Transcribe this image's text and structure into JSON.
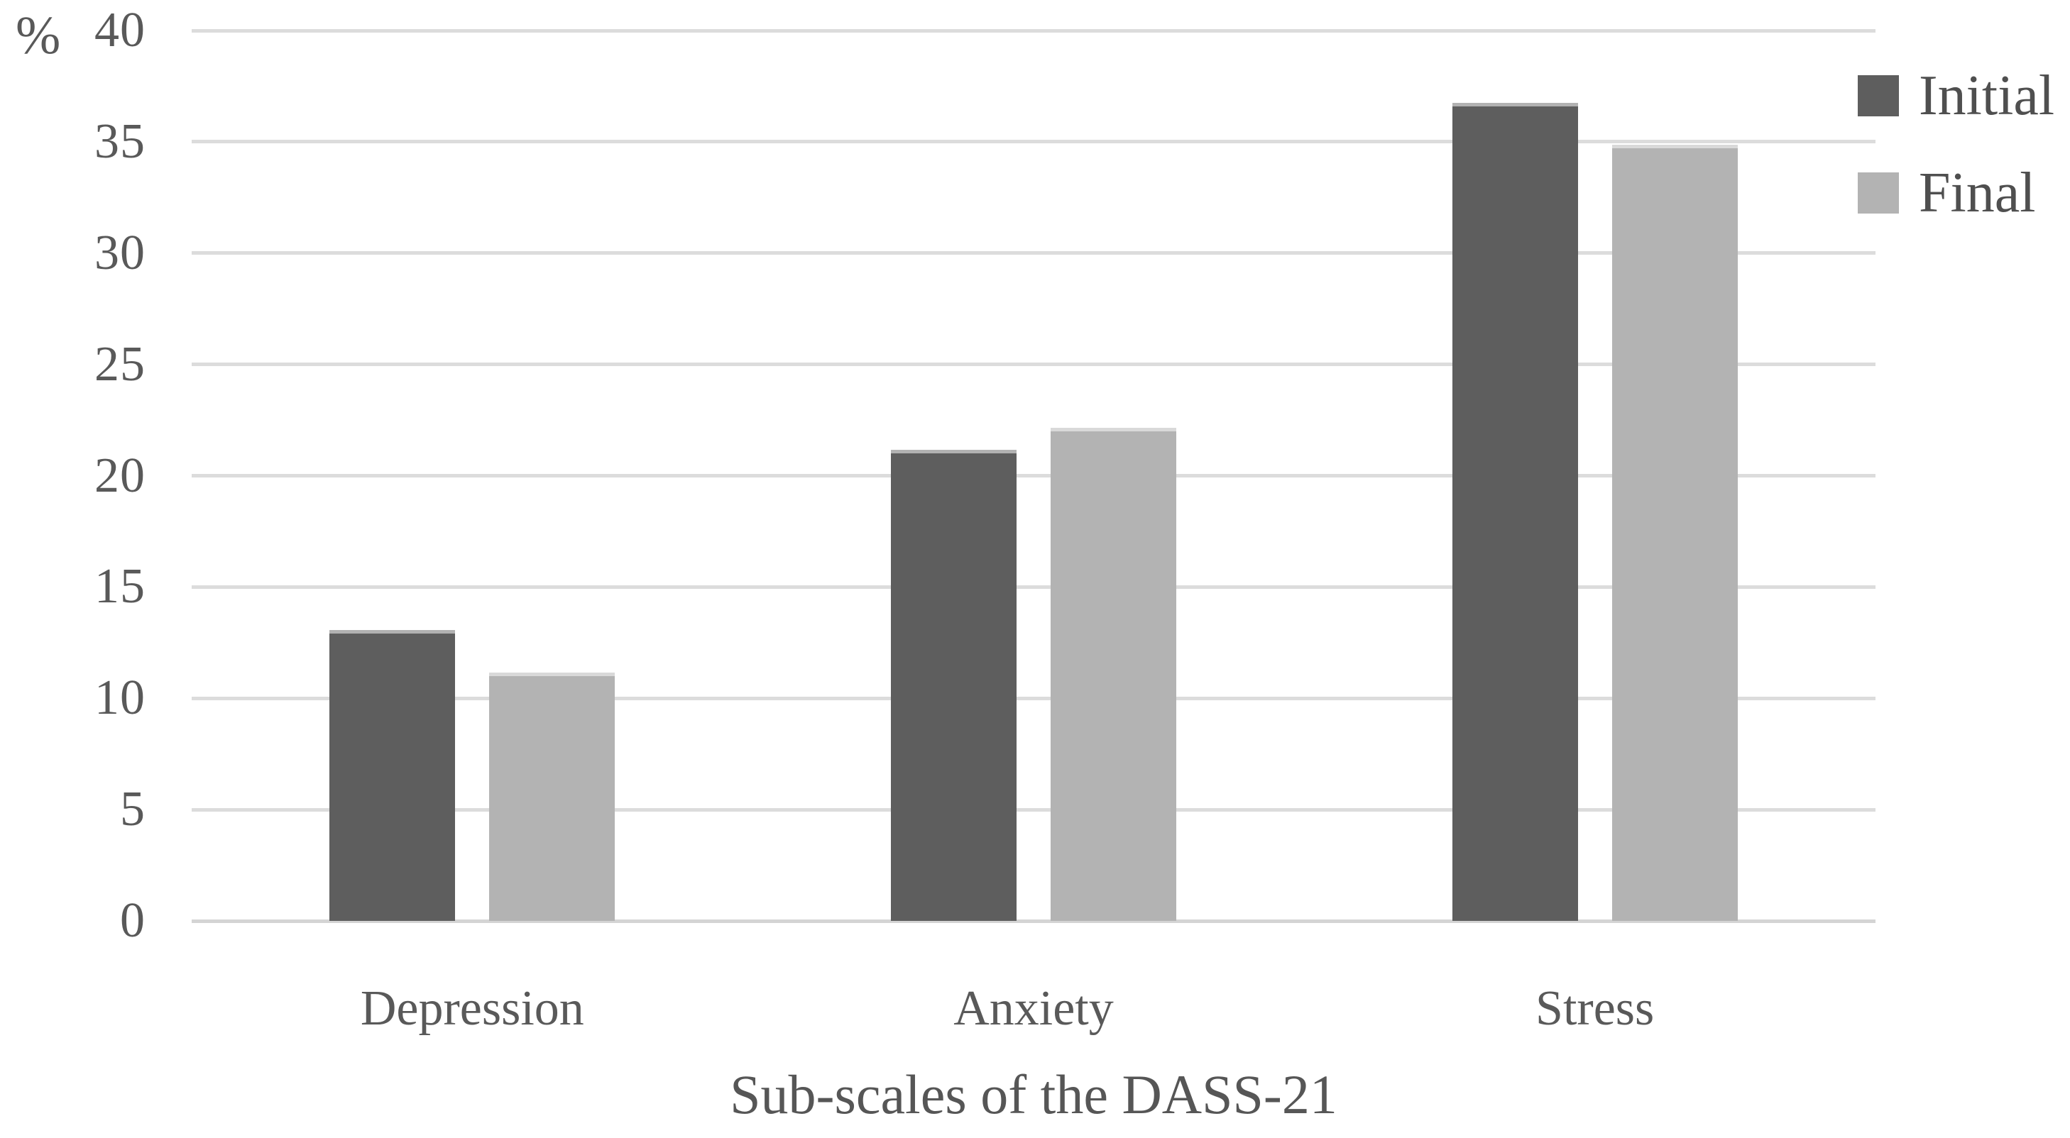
{
  "chart_data": {
    "type": "bar",
    "categories": [
      "Depression",
      "Anxiety",
      "Stress"
    ],
    "series": [
      {
        "name": "Initial",
        "color": "#5e5e5e",
        "values": [
          12.9,
          21.0,
          36.6
        ]
      },
      {
        "name": "Final",
        "color": "#b3b3b3",
        "values": [
          11.0,
          22.0,
          34.7
        ]
      }
    ],
    "title": "",
    "xlabel": "Sub-scales of the DASS-21",
    "ylabel": "%",
    "yticks": [
      0,
      5,
      10,
      15,
      20,
      25,
      30,
      35,
      40
    ],
    "ylim": [
      0,
      40
    ],
    "ytick_step": 5,
    "grid": true,
    "gridline_color": "#dcdcdc",
    "text_color": "#595959",
    "legend_position": "top-right"
  }
}
